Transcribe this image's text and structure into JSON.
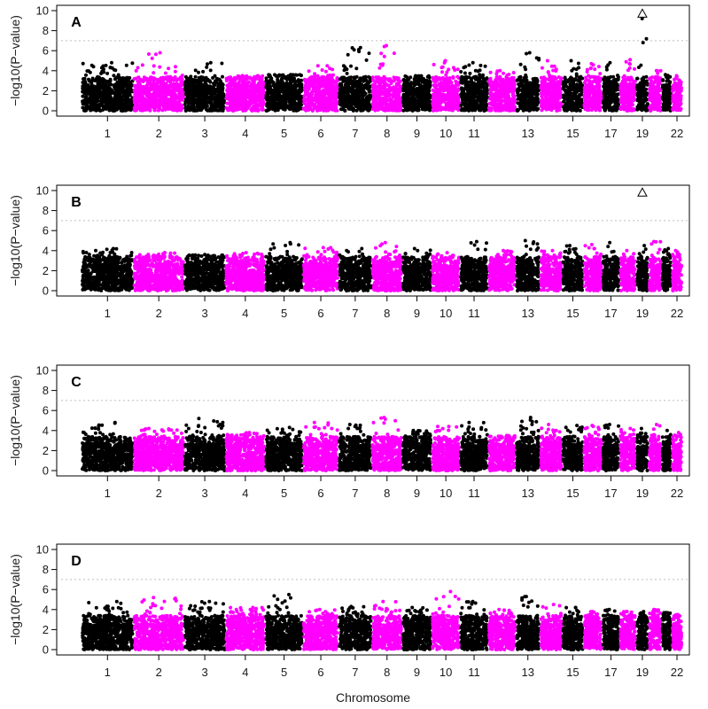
{
  "figure": {
    "xlabel": "Chromosome",
    "ylabel": "−log10(P−value)",
    "colors": {
      "odd": "#000000",
      "even": "#ff00ff",
      "threshold": "#bdbdbd"
    }
  },
  "chart_data": [
    {
      "type": "scatter",
      "panel": "A",
      "xlabel": "Chromosome",
      "ylabel": "−log10(P−value)",
      "ylim": [
        0,
        10
      ],
      "yticks": [
        0,
        2,
        4,
        6,
        8,
        10
      ],
      "threshold": 7.0,
      "x_tick_labels": [
        "1",
        "2",
        "3",
        "4",
        "5",
        "6",
        "7",
        "8",
        "9",
        "10",
        "11",
        "13",
        "15",
        "17",
        "19",
        "22"
      ],
      "chromosome_max": [
        4.8,
        5.8,
        4.8,
        3.5,
        3.6,
        4.5,
        6.3,
        6.5,
        3.5,
        5.0,
        4.8,
        4.0,
        5.8,
        5.0,
        5.0,
        4.7,
        4.8,
        5.1,
        9.2,
        4.0,
        3.6,
        3.4
      ],
      "highlight": {
        "marker": "triangle",
        "chromosome": 19,
        "y": 9.7
      }
    },
    {
      "type": "scatter",
      "panel": "B",
      "xlabel": "Chromosome",
      "ylabel": "−log10(P−value)",
      "ylim": [
        0,
        10
      ],
      "yticks": [
        0,
        2,
        4,
        6,
        8,
        10
      ],
      "threshold": 7.0,
      "x_tick_labels": [
        "1",
        "2",
        "3",
        "4",
        "5",
        "6",
        "7",
        "8",
        "9",
        "10",
        "11",
        "13",
        "15",
        "17",
        "19",
        "22"
      ],
      "chromosome_max": [
        4.2,
        3.8,
        3.6,
        3.8,
        4.8,
        4.3,
        4.2,
        4.8,
        4.2,
        3.8,
        4.9,
        4.0,
        5.0,
        4.0,
        4.5,
        4.6,
        4.8,
        4.0,
        4.5,
        4.9,
        4.2,
        4.0
      ],
      "highlight": {
        "marker": "triangle",
        "chromosome": 19,
        "y": 9.8
      }
    },
    {
      "type": "scatter",
      "panel": "C",
      "xlabel": "Chromosome",
      "ylabel": "−log10(P−value)",
      "ylim": [
        0,
        10
      ],
      "yticks": [
        0,
        2,
        4,
        6,
        8,
        10
      ],
      "threshold": 7.0,
      "x_tick_labels": [
        "1",
        "2",
        "3",
        "4",
        "5",
        "6",
        "7",
        "8",
        "9",
        "10",
        "11",
        "13",
        "15",
        "17",
        "19",
        "22"
      ],
      "chromosome_max": [
        4.8,
        4.2,
        5.2,
        3.8,
        4.3,
        4.8,
        4.6,
        5.3,
        4.0,
        4.4,
        4.8,
        3.5,
        5.3,
        4.6,
        4.5,
        4.5,
        4.6,
        4.2,
        4.2,
        4.6,
        4.0,
        3.8
      ]
    },
    {
      "type": "scatter",
      "panel": "D",
      "xlabel": "Chromosome",
      "ylabel": "−log10(P−value)",
      "ylim": [
        0,
        10
      ],
      "yticks": [
        0,
        2,
        4,
        6,
        8,
        10
      ],
      "threshold": 7.0,
      "x_tick_labels": [
        "1",
        "2",
        "3",
        "4",
        "5",
        "6",
        "7",
        "8",
        "9",
        "10",
        "11",
        "13",
        "15",
        "17",
        "19",
        "22"
      ],
      "chromosome_max": [
        4.8,
        5.2,
        4.8,
        4.2,
        5.5,
        4.0,
        4.3,
        4.8,
        4.2,
        5.8,
        4.8,
        4.0,
        5.3,
        4.5,
        4.2,
        3.8,
        4.0,
        3.8,
        3.8,
        4.0,
        3.7,
        3.5
      ]
    }
  ]
}
